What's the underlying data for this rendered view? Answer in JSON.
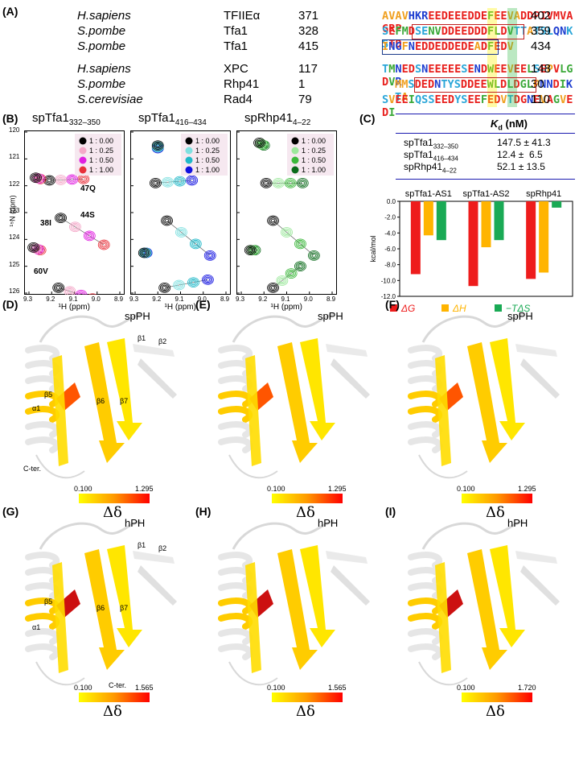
{
  "panels": {
    "A": "(A)",
    "B": "(B)",
    "C": "(C)",
    "D": "(D)",
    "E": "(E)",
    "F": "(F)",
    "G": "(G)",
    "H": "(H)",
    "I": "(I)"
  },
  "alignment": [
    {
      "species": "H.sapiens",
      "protein": "TFIIEα",
      "start": "371",
      "seq": "AVAVHKREEDEEEDDEFEEVADDPIVMVAGRP",
      "end": "402",
      "colors": "OOOOBBBRRRRRRRRRGRROORRRRRRRRRRR"
    },
    {
      "species": "S.pombe",
      "protein": "Tfa1",
      "start": "328",
      "seq": "SEFMDSENVDDEEDDDFLDVTTATSLQNKSTD",
      "end": "359",
      "colors": "CRGGRCCGGRRRRRRRGGRGCCOCCCBBCCRR"
    },
    {
      "species": "S.pombe",
      "protein": "Tfa1",
      "start": "415",
      "seq": "INGFNEDDEDDEDEADFEDV",
      "end": "434",
      "colors": "OBBOBRRRRRRRRRORGRRO"
    },
    {
      "species": "H.sapiens",
      "protein": "XPC",
      "start": "117",
      "seq": "TMNEDSNEEEEESENDWEEVEELSEPVLGDVR",
      "end": "148",
      "colors": "CGBRRCBRRRRRCRBRGRRORRGCRORGGRGB"
    },
    {
      "species": "S.pombe",
      "protein": "Rhp41",
      "start": "1",
      "seq": "MMSDEDNTYSDDEEWLDLDGLPNNDIKTA",
      "end": "30",
      "colors": "OOCRRRBCCCRRRRGGRGRGGOBBRGBCO"
    },
    {
      "species": "S.cerevisiae",
      "protein": "Rad4",
      "start": "79",
      "seq": "SVEEIQSSEEDYSEEFEDVTDGNEVAGVEDI",
      "end": "110",
      "colors": "CORRGCCCRRRCCRRGRROCRRBRORGORRG"
    }
  ],
  "nmr_panels": [
    {
      "title": "spTfa1",
      "sub": "332–350",
      "legend": [
        "1 : 0.00",
        "1 : 0.25",
        "1 : 0.50",
        "1 : 1.00"
      ],
      "colors": [
        "#000000",
        "#f4a8c8",
        "#e020e0",
        "#e8303a"
      ],
      "labels": [
        "47Q",
        "44S",
        "38I",
        "60V"
      ]
    },
    {
      "title": "spTfa1",
      "sub": "416–434",
      "legend": [
        "1 : 0.00",
        "1 : 0.25",
        "1 : 0.50",
        "1 : 1.00"
      ],
      "colors": [
        "#000000",
        "#7fe0e0",
        "#20b8c8",
        "#1010e0"
      ],
      "labels": []
    },
    {
      "title": "spRhp41",
      "sub": "4–22",
      "legend": [
        "1 : 0.00",
        "1 : 0.25",
        "1 : 0.50",
        "1 : 1.00"
      ],
      "colors": [
        "#000000",
        "#9ce89c",
        "#3cb83c",
        "#0a6a1a"
      ],
      "labels": []
    }
  ],
  "nmr_axes": {
    "x_label": "¹H (ppm)",
    "y_label": "¹⁵N (ppm)",
    "x_ticks": [
      "9.3",
      "9.2",
      "9.1",
      "9.0",
      "8.9"
    ],
    "y_ticks": [
      "120",
      "121",
      "122",
      "123",
      "124",
      "125",
      "126"
    ]
  },
  "kd": {
    "header": "K",
    "header_sub": "d",
    "header_unit": " (nM)",
    "rows": [
      {
        "name": "spTfa1",
        "sub": "332–350",
        "value": "147.5 ± 41.3"
      },
      {
        "name": "spTfa1",
        "sub": "416–434",
        "value": "12.4 ±  6.5"
      },
      {
        "name": "spRhp41",
        "sub": "4–22",
        "value": "52.1 ± 13.5"
      }
    ]
  },
  "chart_data": {
    "type": "bar",
    "categories": [
      "spTfa1-AS1",
      "spTfa1-AS2",
      "spRhp41"
    ],
    "series": [
      {
        "name": "ΔG",
        "values": [
          -9.2,
          -10.7,
          -9.8
        ],
        "color": "#ee1c1c"
      },
      {
        "name": "ΔH",
        "values": [
          -4.3,
          -5.8,
          -9.0
        ],
        "color": "#ffb400"
      },
      {
        "name": "−TΔS",
        "values": [
          -4.9,
          -4.9,
          -0.8
        ],
        "color": "#1aaa55"
      }
    ],
    "ylabel": "kcal/mol",
    "ylim": [
      -12.0,
      0.0
    ],
    "yticks": [
      "0.0",
      "-2.0",
      "-4.0",
      "-6.0",
      "-8.0",
      "-10.0",
      "-12.0"
    ],
    "legend_position": "bottom"
  },
  "structures": {
    "sp": {
      "label": "spPH",
      "scale_min": "0.100",
      "scale_max": "1.295",
      "dd": "Δδ"
    },
    "h_GH": {
      "label": "hPH",
      "scale_min": "0.100",
      "scale_max": "1.565",
      "dd": "Δδ"
    },
    "h_I": {
      "label": "hPH",
      "scale_min": "0.100",
      "scale_max": "1.720",
      "dd": "Δδ"
    },
    "annotations": {
      "b1": "β1",
      "b2": "β2",
      "b5": "β5",
      "b6": "β6",
      "b7": "β7",
      "a1": "α1",
      "cter": "C-ter."
    }
  }
}
